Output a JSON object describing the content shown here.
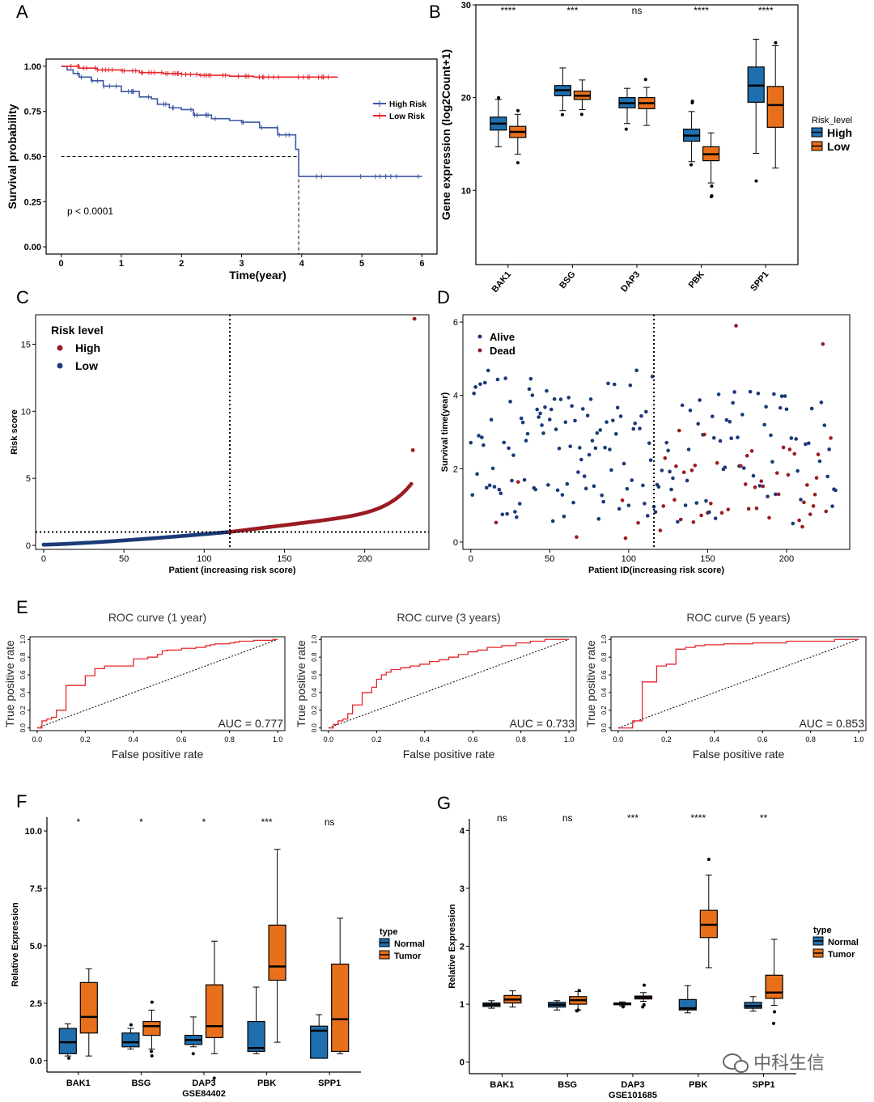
{
  "watermark": {
    "text": "中科生信",
    "icon": "wechat-icon"
  },
  "colors": {
    "high": "#1f6fae",
    "low": "#e8701a",
    "km_high": "#3d58a4",
    "km_low": "#e8262b",
    "risk_high": "#9b1b22",
    "risk_low": "#1a3a78",
    "roc": "#e8262b"
  },
  "chart_data": [
    {
      "id": "A",
      "panel_label": "A",
      "type": "line",
      "xlabel": "Time(year)",
      "ylabel": "Survival probability",
      "xlim": [
        0,
        6
      ],
      "ylim": [
        0,
        1
      ],
      "xticks": [
        "0",
        "1",
        "2",
        "3",
        "4",
        "5",
        "6"
      ],
      "yticks": [
        "0.00",
        "0.25",
        "0.50",
        "0.75",
        "1.00"
      ],
      "annotation": "p < 0.0001",
      "legend": {
        "placement": "right",
        "entries": [
          "High Risk",
          "Low Risk"
        ]
      },
      "series": [
        {
          "name": "High Risk",
          "x": [
            0,
            0.1,
            0.2,
            0.3,
            0.5,
            0.7,
            1.0,
            1.3,
            1.5,
            1.6,
            1.8,
            2.0,
            2.2,
            2.5,
            2.8,
            3.0,
            3.3,
            3.6,
            3.9,
            3.95,
            4.5,
            5.5,
            6.0
          ],
          "y": [
            1.0,
            0.98,
            0.96,
            0.94,
            0.92,
            0.89,
            0.86,
            0.83,
            0.82,
            0.79,
            0.77,
            0.76,
            0.73,
            0.71,
            0.7,
            0.69,
            0.66,
            0.62,
            0.54,
            0.39,
            0.39,
            0.39,
            0.39
          ]
        },
        {
          "name": "Low Risk",
          "x": [
            0,
            0.3,
            0.6,
            1.0,
            1.3,
            1.7,
            2.0,
            2.3,
            2.8,
            3.2,
            3.7,
            4.2,
            4.6
          ],
          "y": [
            1.0,
            0.99,
            0.98,
            0.975,
            0.965,
            0.96,
            0.955,
            0.95,
            0.945,
            0.94,
            0.94,
            0.94,
            0.94
          ]
        }
      ]
    },
    {
      "id": "B",
      "panel_label": "B",
      "type": "box",
      "xlabel": "",
      "ylabel": "Gene expression (log2Count+1)",
      "ylim": [
        2,
        30
      ],
      "yticks": [
        "10",
        "20",
        "30"
      ],
      "categories": [
        "BAK1",
        "BSG",
        "DAP3",
        "PBK",
        "SPP1"
      ],
      "significance": [
        "****",
        "***",
        "ns",
        "****",
        "****"
      ],
      "legend": {
        "title": "Risk_level",
        "placement": "right",
        "entries": [
          "High",
          "Low"
        ]
      },
      "series": [
        {
          "name": "High",
          "boxes": [
            [
              14.7,
              16.5,
              17.2,
              17.9,
              19.8
            ],
            [
              18.6,
              20.2,
              20.8,
              21.3,
              23.2
            ],
            [
              17.2,
              18.9,
              19.4,
              20.0,
              21.0
            ],
            [
              13.1,
              15.3,
              15.9,
              16.6,
              18.5
            ],
            [
              14.0,
              19.5,
              21.3,
              23.3,
              26.3
            ]
          ]
        },
        {
          "name": "Low",
          "boxes": [
            [
              13.9,
              15.7,
              16.3,
              16.9,
              18.2
            ],
            [
              18.7,
              19.8,
              20.2,
              20.7,
              21.9
            ],
            [
              17.0,
              18.8,
              19.4,
              20.0,
              21.1
            ],
            [
              10.8,
              13.2,
              13.9,
              14.7,
              16.2
            ],
            [
              12.4,
              16.8,
              19.2,
              21.2,
              25.6
            ]
          ]
        }
      ]
    },
    {
      "id": "C",
      "panel_label": "C",
      "type": "scatter",
      "xlabel": "Patient (increasing risk score)",
      "ylabel": "Risk score",
      "xlim": [
        -5,
        240
      ],
      "ylim": [
        -0.3,
        17.2
      ],
      "xticks": [
        "0",
        "50",
        "100",
        "150",
        "200"
      ],
      "yticks": [
        "0",
        "5",
        "10",
        "15"
      ],
      "cutoff_x": 116,
      "cutoff_y": 1.0,
      "n": 232,
      "legend": {
        "title": "Risk  level",
        "placement": "top-left",
        "entries": [
          "High",
          "Low"
        ]
      }
    },
    {
      "id": "D",
      "panel_label": "D",
      "type": "scatter",
      "xlabel": "Patient ID(increasing risk score)",
      "ylabel": "Survival time(year)",
      "xlim": [
        -5,
        240
      ],
      "ylim": [
        -0.2,
        6.2
      ],
      "xticks": [
        "0",
        "50",
        "100",
        "150",
        "200"
      ],
      "yticks": [
        "0",
        "2",
        "4",
        "6"
      ],
      "cutoff_x": 116,
      "legend": {
        "placement": "top-left",
        "entries": [
          "Alive",
          "Dead"
        ]
      }
    },
    {
      "id": "E1",
      "panel_label": "E",
      "type": "line",
      "title": "ROC curve (1 year)",
      "xlabel": "False positive rate",
      "ylabel": "True positive rate",
      "xlim": [
        0,
        1
      ],
      "ylim": [
        0,
        1
      ],
      "xticks": [
        "0.0",
        "0.2",
        "0.4",
        "0.6",
        "0.8",
        "1.0"
      ],
      "yticks": [
        "0.0",
        "0.2",
        "0.4",
        "0.6",
        "0.8",
        "1.0"
      ],
      "annotation": "AUC = 0.777",
      "series": [
        {
          "name": "",
          "x": [
            0,
            0.02,
            0.02,
            0.04,
            0.04,
            0.06,
            0.06,
            0.08,
            0.08,
            0.12,
            0.12,
            0.2,
            0.2,
            0.24,
            0.24,
            0.28,
            0.28,
            0.4,
            0.4,
            0.46,
            0.46,
            0.5,
            0.5,
            0.52,
            0.52,
            0.54,
            0.54,
            0.6,
            0.6,
            0.66,
            0.66,
            0.7,
            0.7,
            0.72,
            0.72,
            0.74,
            0.74,
            0.8,
            0.8,
            0.82,
            0.82,
            0.84,
            0.84,
            0.9,
            0.9,
            0.98,
            0.98,
            1
          ],
          "y": [
            0,
            0,
            0.08,
            0.08,
            0.1,
            0.1,
            0.12,
            0.12,
            0.2,
            0.2,
            0.48,
            0.48,
            0.59,
            0.59,
            0.67,
            0.67,
            0.7,
            0.7,
            0.78,
            0.78,
            0.8,
            0.8,
            0.83,
            0.83,
            0.87,
            0.87,
            0.88,
            0.88,
            0.9,
            0.9,
            0.91,
            0.91,
            0.93,
            0.93,
            0.94,
            0.94,
            0.95,
            0.95,
            0.96,
            0.96,
            0.97,
            0.97,
            0.98,
            0.98,
            0.99,
            0.99,
            1,
            1
          ]
        }
      ]
    },
    {
      "id": "E2",
      "panel_label": "",
      "type": "line",
      "title": "ROC curve (3 years)",
      "xlabel": "False positive rate",
      "ylabel": "True positive rate",
      "xlim": [
        0,
        1
      ],
      "ylim": [
        0,
        1
      ],
      "xticks": [
        "0.0",
        "0.2",
        "0.4",
        "0.6",
        "0.8",
        "1.0"
      ],
      "yticks": [
        "0.0",
        "0.2",
        "0.4",
        "0.6",
        "0.8",
        "1.0"
      ],
      "annotation": "AUC = 0.733",
      "series": [
        {
          "name": "",
          "x": [
            0,
            0.02,
            0.02,
            0.04,
            0.04,
            0.06,
            0.06,
            0.08,
            0.08,
            0.1,
            0.1,
            0.14,
            0.14,
            0.18,
            0.18,
            0.2,
            0.2,
            0.22,
            0.22,
            0.24,
            0.24,
            0.26,
            0.26,
            0.3,
            0.3,
            0.34,
            0.34,
            0.38,
            0.38,
            0.42,
            0.42,
            0.46,
            0.46,
            0.5,
            0.5,
            0.54,
            0.54,
            0.58,
            0.58,
            0.62,
            0.62,
            0.66,
            0.66,
            0.72,
            0.72,
            0.78,
            0.78,
            0.84,
            0.84,
            0.9,
            0.9,
            1
          ],
          "y": [
            0,
            0,
            0.04,
            0.04,
            0.08,
            0.08,
            0.1,
            0.1,
            0.16,
            0.16,
            0.26,
            0.26,
            0.4,
            0.4,
            0.46,
            0.46,
            0.55,
            0.55,
            0.6,
            0.6,
            0.63,
            0.63,
            0.66,
            0.66,
            0.68,
            0.68,
            0.7,
            0.7,
            0.72,
            0.72,
            0.75,
            0.75,
            0.77,
            0.77,
            0.8,
            0.8,
            0.83,
            0.83,
            0.86,
            0.86,
            0.88,
            0.88,
            0.91,
            0.91,
            0.93,
            0.93,
            0.96,
            0.96,
            0.98,
            0.98,
            1,
            1
          ]
        }
      ]
    },
    {
      "id": "E3",
      "panel_label": "",
      "type": "line",
      "title": "ROC curve (5 years)",
      "xlabel": "False positive rate",
      "ylabel": "True positive rate",
      "xlim": [
        0,
        1
      ],
      "ylim": [
        0,
        1
      ],
      "xticks": [
        "0.0",
        "0.2",
        "0.4",
        "0.6",
        "0.8",
        "1.0"
      ],
      "yticks": [
        "0.0",
        "0.2",
        "0.4",
        "0.6",
        "0.8",
        "1.0"
      ],
      "annotation": "AUC = 0.853",
      "series": [
        {
          "name": "",
          "x": [
            0,
            0.06,
            0.06,
            0.1,
            0.1,
            0.16,
            0.16,
            0.2,
            0.2,
            0.24,
            0.24,
            0.28,
            0.28,
            0.32,
            0.32,
            0.36,
            0.36,
            0.44,
            0.44,
            0.56,
            0.56,
            0.7,
            0.7,
            0.9,
            0.9,
            1
          ],
          "y": [
            0,
            0,
            0.08,
            0.08,
            0.52,
            0.52,
            0.7,
            0.7,
            0.72,
            0.72,
            0.89,
            0.89,
            0.91,
            0.91,
            0.93,
            0.93,
            0.94,
            0.94,
            0.95,
            0.95,
            0.96,
            0.96,
            0.98,
            0.98,
            1,
            1
          ]
        }
      ]
    },
    {
      "id": "F",
      "panel_label": "F",
      "type": "box",
      "xlabel": "GSE84402",
      "ylabel": "Relative Expression",
      "ylim": [
        -0.5,
        10.6
      ],
      "yticks": [
        "0.0",
        "2.5",
        "5.0",
        "7.5",
        "10.0"
      ],
      "categories": [
        "BAK1",
        "BSG",
        "DAP3",
        "PBK",
        "SPP1"
      ],
      "significance": [
        "*",
        "*",
        "*",
        "***",
        "ns"
      ],
      "legend": {
        "title": "type",
        "placement": "right",
        "entries": [
          "Normal",
          "Tumor"
        ]
      },
      "series": [
        {
          "name": "Normal",
          "boxes": [
            [
              0.2,
              0.3,
              0.8,
              1.4,
              1.6
            ],
            [
              0.5,
              0.6,
              0.8,
              1.2,
              1.4
            ],
            [
              0.6,
              0.7,
              0.9,
              1.1,
              1.9
            ],
            [
              0.3,
              0.4,
              0.55,
              1.7,
              3.2
            ],
            [
              0.1,
              0.1,
              1.3,
              1.5,
              2.0
            ]
          ]
        },
        {
          "name": "Tumor",
          "boxes": [
            [
              0.2,
              1.2,
              1.9,
              3.4,
              4.0
            ],
            [
              0.5,
              1.1,
              1.5,
              1.7,
              2.2
            ],
            [
              0.3,
              1.0,
              1.5,
              3.3,
              5.2
            ],
            [
              0.8,
              3.5,
              4.1,
              5.9,
              9.2
            ],
            [
              0.3,
              0.4,
              1.8,
              4.2,
              6.2
            ]
          ]
        }
      ]
    },
    {
      "id": "G",
      "panel_label": "G",
      "type": "box",
      "xlabel": "GSE101685",
      "ylabel": "Relative Expression",
      "ylim": [
        -0.2,
        4.2
      ],
      "yticks": [
        "0",
        "1",
        "2",
        "3",
        "4"
      ],
      "categories": [
        "BAK1",
        "BSG",
        "DAP3",
        "PBK",
        "SPP1"
      ],
      "significance": [
        "ns",
        "ns",
        "***",
        "****",
        "**"
      ],
      "legend": {
        "title": "type",
        "placement": "right",
        "entries": [
          "Normal",
          "Tumor"
        ]
      },
      "series": [
        {
          "name": "Normal",
          "boxes": [
            [
              0.93,
              0.96,
              0.99,
              1.02,
              1.06
            ],
            [
              0.9,
              0.95,
              0.99,
              1.03,
              1.06
            ],
            [
              0.97,
              0.99,
              1.01,
              1.02,
              1.04
            ],
            [
              0.85,
              0.9,
              0.93,
              1.08,
              1.32
            ],
            [
              0.88,
              0.93,
              0.97,
              1.03,
              1.13
            ]
          ]
        },
        {
          "name": "Tumor",
          "boxes": [
            [
              0.95,
              1.02,
              1.08,
              1.15,
              1.23
            ],
            [
              0.9,
              1.0,
              1.07,
              1.13,
              1.22
            ],
            [
              1.05,
              1.09,
              1.12,
              1.14,
              1.2
            ],
            [
              1.63,
              2.15,
              2.37,
              2.62,
              3.23
            ],
            [
              0.98,
              1.1,
              1.2,
              1.5,
              2.12
            ]
          ]
        }
      ]
    }
  ]
}
